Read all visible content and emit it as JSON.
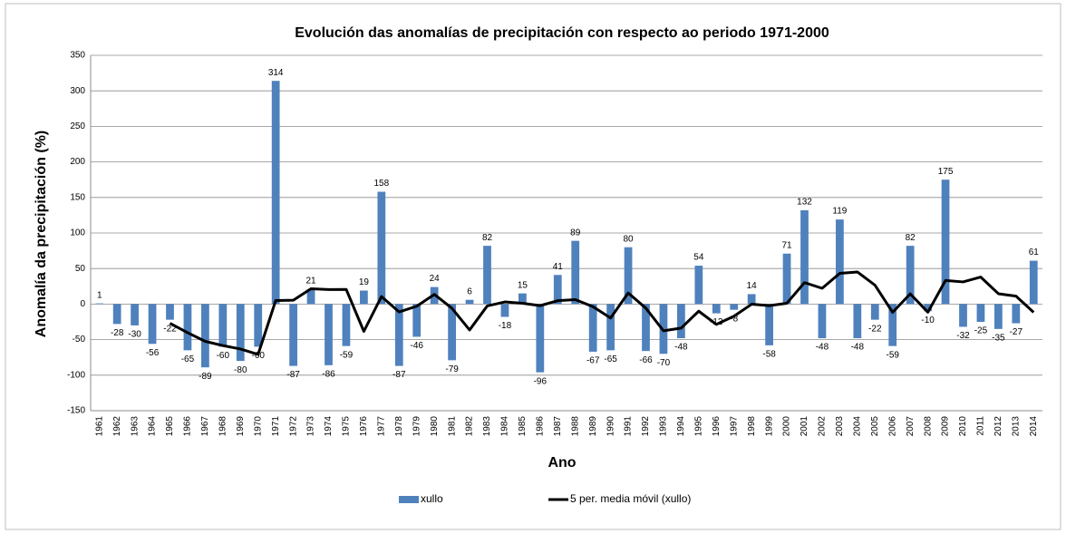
{
  "chart_data": {
    "type": "bar",
    "title": "Evolución das anomalías de precipitación con respecto ao periodo 1971-2000",
    "x_label": "Ano",
    "y_label": "Anomalía da precipitación (%)",
    "categories": [
      "1961",
      "1962",
      "1963",
      "1964",
      "1965",
      "1966",
      "1967",
      "1968",
      "1969",
      "1970",
      "1971",
      "1972",
      "1973",
      "1974",
      "1975",
      "1976",
      "1977",
      "1978",
      "1979",
      "1980",
      "1981",
      "1982",
      "1983",
      "1984",
      "1985",
      "1986",
      "1987",
      "1988",
      "1989",
      "1990",
      "1991",
      "1992",
      "1993",
      "1994",
      "1995",
      "1996",
      "1997",
      "1998",
      "1999",
      "2000",
      "2001",
      "2002",
      "2003",
      "2004",
      "2005",
      "2006",
      "2007",
      "2008",
      "2009",
      "2010",
      "2011",
      "2012",
      "2013",
      "2014"
    ],
    "series": [
      {
        "name": "xullo",
        "type": "bar",
        "color": "#4f81bd",
        "values": [
          1,
          -28,
          -30,
          -56,
          -22,
          -65,
          -89,
          -60,
          -80,
          -60,
          314,
          -87,
          21,
          -86,
          -59,
          19,
          158,
          -87,
          -46,
          24,
          -79,
          6,
          82,
          -18,
          15,
          -96,
          41,
          89,
          -67,
          -65,
          80,
          -66,
          -70,
          -48,
          54,
          -13,
          -8,
          14,
          -58,
          71,
          132,
          -48,
          119,
          -48,
          -22,
          -59,
          82,
          -10,
          175,
          -32,
          -25,
          -35,
          -27,
          61
        ]
      },
      {
        "name": "5 per. media móvil (xullo)",
        "type": "line",
        "color": "#000000",
        "values": [
          null,
          null,
          null,
          null,
          -27,
          -40.2,
          -52.4,
          -58.4,
          -63.2,
          -70.8,
          5,
          5.4,
          21.6,
          20.4,
          20.6,
          -38.4,
          10.6,
          -11,
          -3,
          13.6,
          -6,
          -36.4,
          -2.6,
          3,
          1.2,
          -2.2,
          4.8,
          6.2,
          -3.6,
          -19.6,
          15.6,
          -5.8,
          -37.6,
          -33.8,
          -10,
          -28.6,
          -17,
          -0.2,
          -2.2,
          1.2,
          30.2,
          22.2,
          43.2,
          45.2,
          26.6,
          -11.6,
          14.4,
          -11.4,
          33.2,
          31.2,
          38,
          14.6,
          11.2,
          -11.6
        ]
      }
    ],
    "ylim": [
      -150,
      350
    ],
    "yticks": [
      -150,
      -100,
      -50,
      0,
      50,
      100,
      150,
      200,
      250,
      300,
      350
    ],
    "grid": true,
    "legend": "bottom"
  }
}
